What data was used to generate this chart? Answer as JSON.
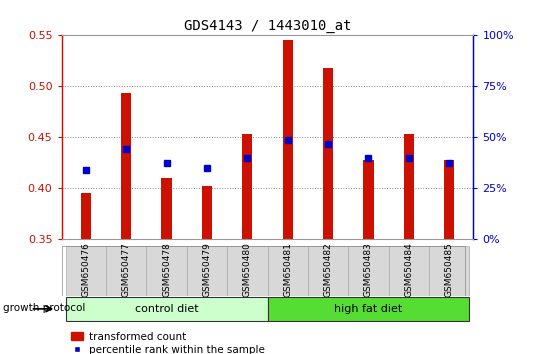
{
  "title": "GDS4143 / 1443010_at",
  "samples": [
    "GSM650476",
    "GSM650477",
    "GSM650478",
    "GSM650479",
    "GSM650480",
    "GSM650481",
    "GSM650482",
    "GSM650483",
    "GSM650484",
    "GSM650485"
  ],
  "transformed_count": [
    0.395,
    0.493,
    0.41,
    0.402,
    0.453,
    0.545,
    0.518,
    0.428,
    0.453,
    0.428
  ],
  "percentile_rank": [
    0.418,
    0.438,
    0.425,
    0.42,
    0.43,
    0.447,
    0.443,
    0.43,
    0.43,
    0.425
  ],
  "bar_color": "#cc1100",
  "square_color": "#0000cc",
  "ylim_left": [
    0.35,
    0.55
  ],
  "ylim_right": [
    0,
    100
  ],
  "yticks_left": [
    0.35,
    0.4,
    0.45,
    0.5,
    0.55
  ],
  "yticks_right": [
    0,
    25,
    50,
    75,
    100
  ],
  "groups": [
    {
      "label": "control diet",
      "indices": [
        0,
        1,
        2,
        3,
        4
      ],
      "color": "#ccffcc"
    },
    {
      "label": "high fat diet",
      "indices": [
        5,
        6,
        7,
        8,
        9
      ],
      "color": "#55dd33"
    }
  ],
  "group_label": "growth protocol",
  "legend_tc": "transformed count",
  "legend_pr": "percentile rank within the sample",
  "left_axis_color": "#cc1100",
  "right_axis_color": "#0000cc",
  "bar_bottom": 0.35,
  "bar_width": 0.25,
  "grid_color": "#888888",
  "label_bg_color": "#d8d8d8",
  "plot_bg": "#ffffff",
  "fig_width": 5.35,
  "fig_height": 3.54,
  "dpi": 100
}
